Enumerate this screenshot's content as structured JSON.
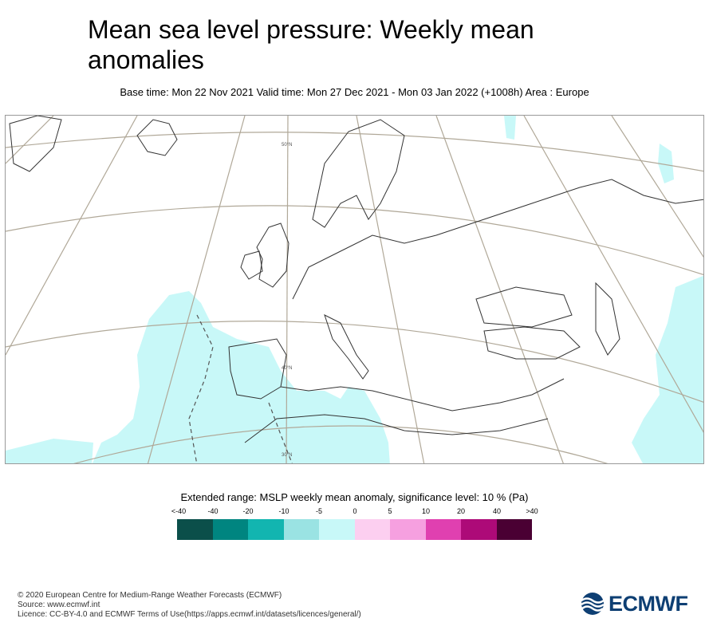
{
  "title": "Mean sea level pressure: Weekly mean anomalies",
  "subtitle": "Base time: Mon 22 Nov 2021 Valid time: Mon 27 Dec 2021 - Mon 03 Jan 2022 (+1008h) Area : Europe",
  "map": {
    "lat_labels": [
      "50°N",
      "40°N",
      "30°N"
    ],
    "colors": {
      "anomaly_light_cyan": "#c8f8f8",
      "coastline": "#333333",
      "graticule": "#b0a898"
    }
  },
  "legend": {
    "title": "Extended range: MSLP weekly mean anomaly, significance level: 10 % (Pa)",
    "ticks": [
      "<-40",
      "-40",
      "-20",
      "-10",
      "-5",
      "0",
      "5",
      "10",
      "20",
      "40",
      ">40"
    ],
    "colors": [
      "#0b4f4a",
      "#008580",
      "#12b5b0",
      "#9ae3e3",
      "#c8f8f8",
      "#fccff0",
      "#f6a0e0",
      "#e040b0",
      "#ad0a78",
      "#4a0033"
    ]
  },
  "footer": {
    "copyright": "© 2020 European Centre for Medium-Range Weather Forecasts (ECMWF)",
    "source": "Source: www.ecmwf.int",
    "licence": "Licence: CC-BY-4.0 and ECMWF Terms of Use(https://apps.ecmwf.int/datasets/licences/general/)"
  },
  "logo": {
    "text": "ECMWF",
    "color": "#0e3f73"
  }
}
